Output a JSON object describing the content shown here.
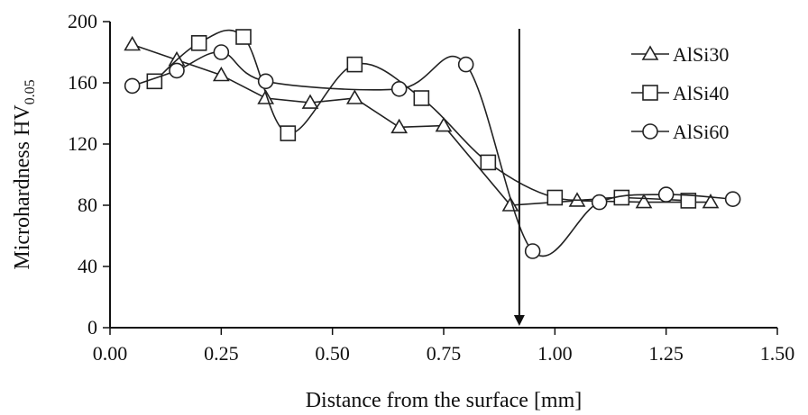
{
  "chart_data": {
    "type": "line",
    "title": "",
    "xlabel": "Distance from the surface [mm]",
    "ylabel": "Microhardness HV",
    "ylabel_subscript": "0.05",
    "xlim": [
      0.0,
      1.5
    ],
    "ylim": [
      0,
      200
    ],
    "x_ticks": [
      "0.00",
      "0.25",
      "0.50",
      "0.75",
      "1.00",
      "1.25",
      "1.50"
    ],
    "y_ticks": [
      "0",
      "40",
      "80",
      "120",
      "160",
      "200"
    ],
    "grid": false,
    "legend_position": "top-right",
    "series": [
      {
        "name": "AlSi30",
        "marker": "triangle",
        "x": [
          0.05,
          0.15,
          0.25,
          0.35,
          0.45,
          0.55,
          0.65,
          0.75,
          0.9,
          1.05,
          1.2,
          1.35
        ],
        "y": [
          185,
          175,
          165,
          150,
          147,
          150,
          131,
          132,
          80,
          83,
          82,
          82
        ]
      },
      {
        "name": "AlSi40",
        "marker": "square",
        "x": [
          0.1,
          0.2,
          0.3,
          0.4,
          0.55,
          0.7,
          0.85,
          1.0,
          1.15,
          1.3
        ],
        "y": [
          161,
          186,
          190,
          127,
          172,
          150,
          108,
          85,
          85,
          83
        ]
      },
      {
        "name": "AlSi60",
        "marker": "circle",
        "x": [
          0.05,
          0.15,
          0.25,
          0.35,
          0.65,
          0.8,
          0.95,
          1.1,
          1.25,
          1.4
        ],
        "y": [
          158,
          168,
          180,
          161,
          156,
          172,
          50,
          82,
          87,
          84
        ]
      }
    ],
    "marker_line_x": 0.92
  }
}
